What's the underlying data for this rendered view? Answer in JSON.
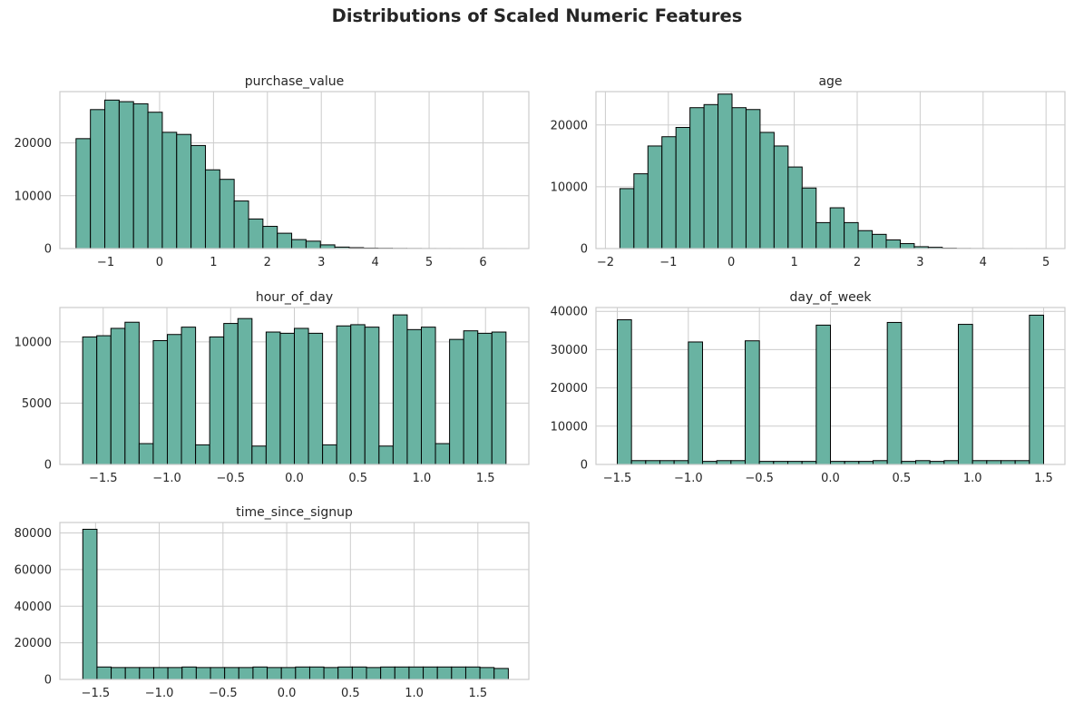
{
  "figure": {
    "title": "Distributions of Scaled Numeric Features"
  },
  "style": {
    "bar_color": "#69b3a2",
    "bar_edge_color": "#000000",
    "grid_color": "#cccccc",
    "axes_edge_color": "#cccccc",
    "background": "#ffffff"
  },
  "chart_data": [
    {
      "type": "bar",
      "title": "purchase_value",
      "grid": true,
      "xlim": [
        -1.85,
        6.85
      ],
      "ylim": [
        0,
        29700
      ],
      "xticks": [
        -1,
        0,
        1,
        2,
        3,
        4,
        5,
        6
      ],
      "yticks": [
        0,
        10000,
        20000
      ],
      "x_start": -1.55,
      "bin_width": 0.2667,
      "values": [
        20800,
        26300,
        28100,
        27800,
        27400,
        25800,
        22000,
        21600,
        19500,
        14900,
        13100,
        9000,
        5600,
        4200,
        2900,
        1700,
        1400,
        700,
        280,
        170,
        90,
        60,
        30,
        20,
        10,
        8,
        5,
        3,
        2,
        1
      ]
    },
    {
      "type": "bar",
      "title": "age",
      "grid": true,
      "xlim": [
        -2.15,
        5.3
      ],
      "ylim": [
        0,
        25400
      ],
      "xticks": [
        -2,
        -1,
        0,
        1,
        2,
        3,
        4,
        5
      ],
      "yticks": [
        0,
        10000,
        20000
      ],
      "x_start": -1.77,
      "bin_width": 0.2227,
      "values": [
        9700,
        12100,
        16600,
        18100,
        19600,
        22800,
        23300,
        25000,
        22800,
        22500,
        18800,
        16600,
        13200,
        9800,
        4200,
        6600,
        4200,
        2900,
        2300,
        1400,
        800,
        300,
        200,
        60,
        20,
        10,
        5,
        3,
        2,
        1
      ]
    },
    {
      "type": "bar",
      "title": "hour_of_day",
      "grid": true,
      "xlim": [
        -1.84,
        1.84
      ],
      "ylim": [
        0,
        12800
      ],
      "xticks": [
        -1.5,
        -1.0,
        -0.5,
        0.0,
        0.5,
        1.0,
        1.5
      ],
      "yticks": [
        0,
        5000,
        10000
      ],
      "x_start": -1.661,
      "bin_width": 0.11073,
      "values": [
        10400,
        10500,
        11100,
        11600,
        1700,
        10100,
        10600,
        11200,
        1600,
        10400,
        11500,
        11900,
        1500,
        10800,
        10700,
        11100,
        10700,
        1600,
        11300,
        11400,
        11200,
        1500,
        12200,
        11000,
        11200,
        1700,
        10200,
        10900,
        10700,
        10800
      ]
    },
    {
      "type": "bar",
      "title": "day_of_week",
      "grid": true,
      "xlim": [
        -1.65,
        1.65
      ],
      "ylim": [
        0,
        41000
      ],
      "xticks": [
        -1.5,
        -1.0,
        -0.5,
        0.0,
        0.5,
        1.0,
        1.5
      ],
      "yticks": [
        0,
        10000,
        20000,
        30000,
        40000
      ],
      "x_start": -1.5,
      "bin_width": 0.1,
      "values": [
        37800,
        1000,
        1000,
        1000,
        1000,
        32000,
        800,
        1000,
        1000,
        32300,
        800,
        800,
        800,
        800,
        36400,
        800,
        800,
        800,
        1000,
        37100,
        800,
        1000,
        800,
        1000,
        36600,
        1000,
        1000,
        1000,
        1000,
        39000
      ]
    },
    {
      "type": "bar",
      "title": "time_since_signup",
      "grid": true,
      "xlim": [
        -1.78,
        1.9
      ],
      "ylim": [
        0,
        85700
      ],
      "xticks": [
        -1.5,
        -1.0,
        -0.5,
        0.0,
        0.5,
        1.0,
        1.5
      ],
      "yticks": [
        0,
        20000,
        40000,
        60000,
        80000
      ],
      "x_start": -1.6,
      "bin_width": 0.1113,
      "values": [
        82000,
        6800,
        6500,
        6500,
        6500,
        6500,
        6500,
        6800,
        6500,
        6500,
        6500,
        6500,
        6800,
        6500,
        6500,
        6800,
        6800,
        6500,
        6800,
        6800,
        6500,
        6800,
        6800,
        6800,
        6800,
        6800,
        6800,
        6800,
        6500,
        6000
      ]
    }
  ]
}
